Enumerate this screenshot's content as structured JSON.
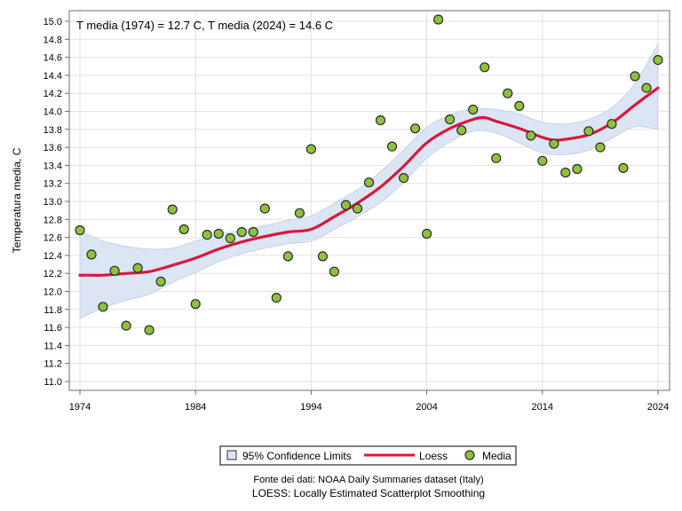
{
  "chart_data": {
    "type": "scatter",
    "title": "",
    "annotation": "T media (1974) = 12.7 C, T media (2024) = 14.6 C",
    "xlabel": "",
    "ylabel": "Temperatura media, C",
    "xlim": [
      1974,
      2024
    ],
    "ylim": [
      11.0,
      15.0
    ],
    "xticks": [
      1974,
      1984,
      1994,
      2004,
      2014,
      2024
    ],
    "yticks": [
      11.0,
      11.2,
      11.4,
      11.6,
      11.8,
      12.0,
      12.2,
      12.4,
      12.6,
      12.8,
      13.0,
      13.2,
      13.4,
      13.6,
      13.8,
      14.0,
      14.2,
      14.4,
      14.6,
      14.8,
      15.0
    ],
    "grid": true,
    "legend_position": "bottom",
    "series": [
      {
        "name": "Media",
        "kind": "scatter",
        "color": "#8fc23c",
        "x": [
          1974,
          1975,
          1976,
          1977,
          1978,
          1979,
          1980,
          1981,
          1982,
          1983,
          1984,
          1985,
          1986,
          1987,
          1988,
          1989,
          1990,
          1991,
          1992,
          1993,
          1994,
          1995,
          1996,
          1997,
          1998,
          1999,
          2000,
          2001,
          2002,
          2003,
          2004,
          2005,
          2006,
          2007,
          2008,
          2009,
          2010,
          2011,
          2012,
          2013,
          2014,
          2015,
          2016,
          2017,
          2018,
          2019,
          2020,
          2021,
          2022,
          2023,
          2024
        ],
        "y": [
          12.68,
          12.41,
          11.83,
          12.23,
          11.62,
          12.26,
          11.57,
          12.11,
          12.91,
          12.69,
          11.86,
          12.63,
          12.64,
          12.59,
          12.66,
          12.66,
          12.92,
          11.93,
          12.39,
          12.87,
          13.58,
          12.39,
          12.22,
          12.96,
          12.92,
          13.21,
          13.9,
          13.61,
          13.26,
          13.81,
          12.64,
          15.02,
          13.91,
          13.79,
          14.02,
          14.49,
          13.48,
          14.2,
          14.06,
          13.73,
          13.45,
          13.64,
          13.32,
          13.36,
          13.78,
          13.6,
          13.86,
          13.37,
          14.39,
          14.26,
          14.57
        ]
      },
      {
        "name": "Loess",
        "kind": "line",
        "color": "#d7193b",
        "x": [
          1974,
          1975,
          1976,
          1978,
          1980,
          1982,
          1984,
          1986,
          1988,
          1990,
          1992,
          1994,
          1996,
          1998,
          2000,
          2002,
          2004,
          2006,
          2008,
          2009,
          2010,
          2012,
          2014,
          2015,
          2016,
          2018,
          2020,
          2022,
          2024
        ],
        "y": [
          12.18,
          12.18,
          12.18,
          12.2,
          12.22,
          12.29,
          12.37,
          12.47,
          12.55,
          12.61,
          12.66,
          12.69,
          12.83,
          12.98,
          13.16,
          13.39,
          13.65,
          13.81,
          13.91,
          13.93,
          13.89,
          13.81,
          13.71,
          13.68,
          13.69,
          13.74,
          13.87,
          14.07,
          14.26
        ]
      },
      {
        "name": "95% Confidence Limits",
        "kind": "band",
        "color": "#dbe5f3",
        "x": [
          1974,
          1976,
          1978,
          1980,
          1982,
          1984,
          1986,
          1988,
          1990,
          1992,
          1994,
          1996,
          1998,
          2000,
          2002,
          2004,
          2006,
          2008,
          2010,
          2012,
          2014,
          2016,
          2018,
          2020,
          2022,
          2024
        ],
        "lower": [
          11.7,
          11.82,
          11.9,
          11.97,
          12.1,
          12.21,
          12.33,
          12.42,
          12.48,
          12.53,
          12.56,
          12.69,
          12.83,
          12.99,
          13.21,
          13.48,
          13.66,
          13.78,
          13.76,
          13.65,
          13.54,
          13.52,
          13.57,
          13.7,
          13.83,
          13.8
        ],
        "upper": [
          12.67,
          12.56,
          12.5,
          12.47,
          12.48,
          12.56,
          12.63,
          12.68,
          12.73,
          12.79,
          12.84,
          12.98,
          13.13,
          13.33,
          13.57,
          13.82,
          13.96,
          14.03,
          14.02,
          13.97,
          13.88,
          13.86,
          13.91,
          14.04,
          14.31,
          14.75
        ]
      }
    ],
    "legend": [
      {
        "label": "95% Confidence Limits",
        "symbol": "band"
      },
      {
        "label": "Loess",
        "symbol": "line"
      },
      {
        "label": "Media",
        "symbol": "marker"
      }
    ],
    "footnotes": [
      "Fonte dei dati: NOAA Daily Summaries dataset (Italy)",
      "LOESS: Locally Estimated Scatterplot Smoothing"
    ]
  },
  "colors": {
    "band_stroke": "#c6d3e6",
    "marker_stroke": "#2b2b2b",
    "grid": "#e2e2e2",
    "axis": "#6e6e6e"
  }
}
